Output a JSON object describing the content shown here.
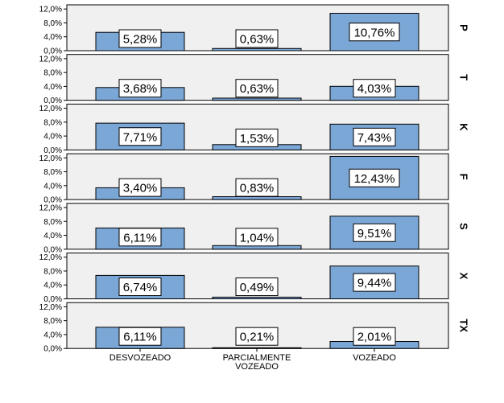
{
  "chart_data": {
    "type": "bar",
    "categories": [
      "DESVOZEADO",
      "PARCIALMENTE VOZEADO",
      "VOZEADO"
    ],
    "category_lines": [
      [
        "DESVOZEADO"
      ],
      [
        "PARCIALMENTE",
        "VOZEADO"
      ],
      [
        "VOZEADO"
      ]
    ],
    "y_ticks": [
      "0,0%",
      "4,0%",
      "8,0%",
      "12,0%"
    ],
    "y_tick_values": [
      0,
      4,
      8,
      12
    ],
    "ylim": [
      0,
      13.2
    ],
    "grid": false,
    "bar_color": "#7ba7d7",
    "panel_background": "#f0f0f0",
    "series": [
      {
        "name": "P",
        "values": [
          5.28,
          0.63,
          10.76
        ],
        "labels": [
          "5,28%",
          "0,63%",
          "10,76%"
        ]
      },
      {
        "name": "T",
        "values": [
          3.68,
          0.63,
          4.03
        ],
        "labels": [
          "3,68%",
          "0,63%",
          "4,03%"
        ]
      },
      {
        "name": "K",
        "values": [
          7.71,
          1.53,
          7.43
        ],
        "labels": [
          "7,71%",
          "1,53%",
          "7,43%"
        ]
      },
      {
        "name": "F",
        "values": [
          3.4,
          0.83,
          12.43
        ],
        "labels": [
          "3,40%",
          "0,83%",
          "12,43%"
        ]
      },
      {
        "name": "S",
        "values": [
          6.11,
          1.04,
          9.51
        ],
        "labels": [
          "6,11%",
          "1,04%",
          "9,51%"
        ]
      },
      {
        "name": "X",
        "values": [
          6.74,
          0.49,
          9.44
        ],
        "labels": [
          "6,74%",
          "0,49%",
          "9,44%"
        ]
      },
      {
        "name": "TX",
        "values": [
          6.11,
          0.21,
          2.01
        ],
        "labels": [
          "6,11%",
          "0,21%",
          "2,01%"
        ]
      }
    ]
  }
}
